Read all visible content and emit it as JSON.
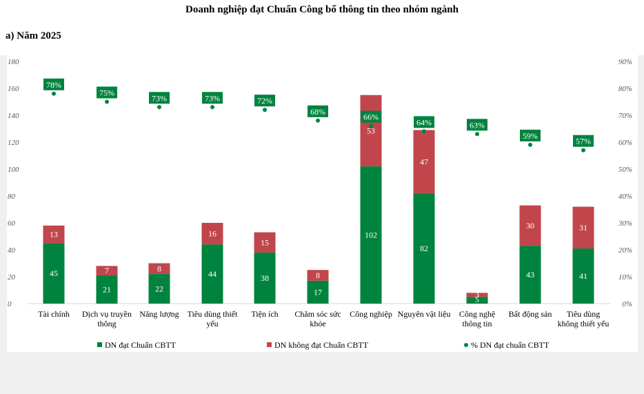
{
  "title": "Doanh nghiệp đạt Chuẩn Công bố thông tin theo nhóm ngành",
  "subtitle": "a) Năm 2025",
  "colors": {
    "green": "#00833e",
    "red": "#c0464b",
    "dot": "#00833e"
  },
  "chart_data": {
    "type": "bar",
    "stacked": true,
    "categories": [
      [
        "Tài chính"
      ],
      [
        "Dịch vụ truyền",
        "thông"
      ],
      [
        "Năng lượng"
      ],
      [
        "Tiêu dùng thiết",
        "yếu"
      ],
      [
        "Tiện ích"
      ],
      [
        "Chăm sóc sức",
        "khỏe"
      ],
      [
        "Công nghiệp"
      ],
      [
        "Nguyên vật liệu"
      ],
      [
        "Công nghệ",
        "thông tin"
      ],
      [
        "Bất động sản"
      ],
      [
        "Tiêu dùng",
        "không thiết yếu"
      ]
    ],
    "series": [
      {
        "name": "DN đạt Chuẩn CBTT",
        "values": [
          45,
          21,
          22,
          44,
          38,
          17,
          102,
          82,
          5,
          43,
          41
        ]
      },
      {
        "name": "DN không đạt Chuẩn CBTT",
        "values": [
          13,
          7,
          8,
          16,
          15,
          8,
          53,
          47,
          3,
          30,
          31
        ]
      }
    ],
    "percent_series": {
      "name": "% DN đạt chuẩn CBTT",
      "values": [
        78,
        75,
        73,
        73,
        72,
        68,
        66,
        64,
        63,
        59,
        57
      ],
      "labels": [
        "78%",
        "75%",
        "73%",
        "73%",
        "72%",
        "68%",
        "66%",
        "64%",
        "63%",
        "59%",
        "57%"
      ]
    },
    "ylim": [
      0,
      180
    ],
    "yticks": [
      "0",
      "20",
      "40",
      "60",
      "80",
      "100",
      "120",
      "140",
      "160",
      "180"
    ],
    "y2lim": [
      0,
      90
    ],
    "y2ticks": [
      "0%",
      "10%",
      "20%",
      "30%",
      "40%",
      "50%",
      "60%",
      "70%",
      "80%",
      "90%"
    ],
    "legend_position": "bottom",
    "grid": false
  }
}
